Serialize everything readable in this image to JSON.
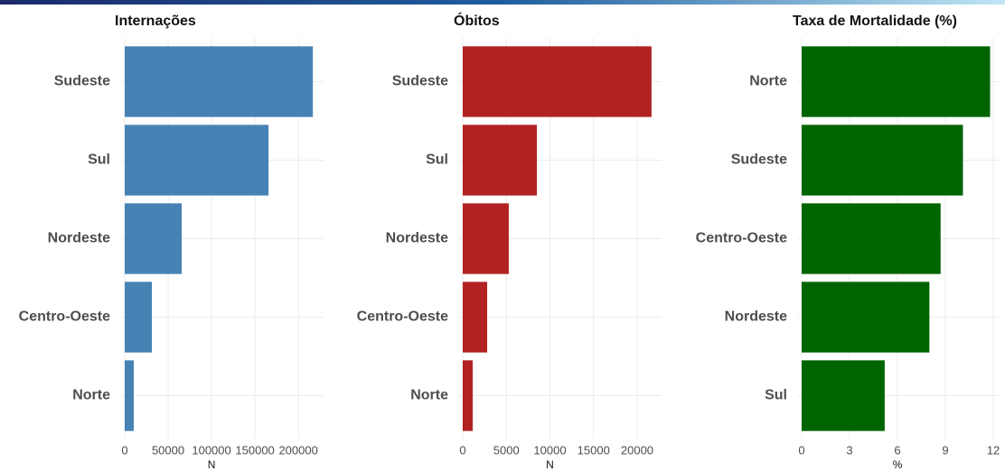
{
  "chart_data": [
    {
      "type": "bar",
      "orientation": "horizontal",
      "title": "Internações",
      "xlabel": "N",
      "categories": [
        "Sudeste",
        "Sul",
        "Nordeste",
        "Centro-Oeste",
        "Norte"
      ],
      "values": [
        216700,
        165600,
        65600,
        31250,
        10400
      ],
      "color": "#4682b4",
      "xlim": [
        0,
        229000
      ],
      "xticks": [
        0,
        50000,
        100000,
        150000,
        200000
      ],
      "grid": true
    },
    {
      "type": "bar",
      "orientation": "horizontal",
      "title": "Óbitos",
      "xlabel": "N",
      "categories": [
        "Sudeste",
        "Sul",
        "Nordeste",
        "Centro-Oeste",
        "Norte"
      ],
      "values": [
        21650,
        8500,
        5280,
        2800,
        1140
      ],
      "color": "#b22222",
      "xlim": [
        0,
        22800
      ],
      "xticks": [
        0,
        5000,
        10000,
        15000,
        20000
      ],
      "grid": true
    },
    {
      "type": "bar",
      "orientation": "horizontal",
      "title": "Taxa de Mortalidade (%)",
      "xlabel": "%",
      "categories": [
        "Norte",
        "Sudeste",
        "Centro-Oeste",
        "Nordeste",
        "Sul"
      ],
      "values": [
        11.8,
        10.1,
        8.7,
        8.0,
        5.2
      ],
      "color": "#006400",
      "xlim": [
        0,
        12.45
      ],
      "xticks": [
        0,
        3,
        6,
        9,
        12
      ],
      "grid": true
    }
  ]
}
